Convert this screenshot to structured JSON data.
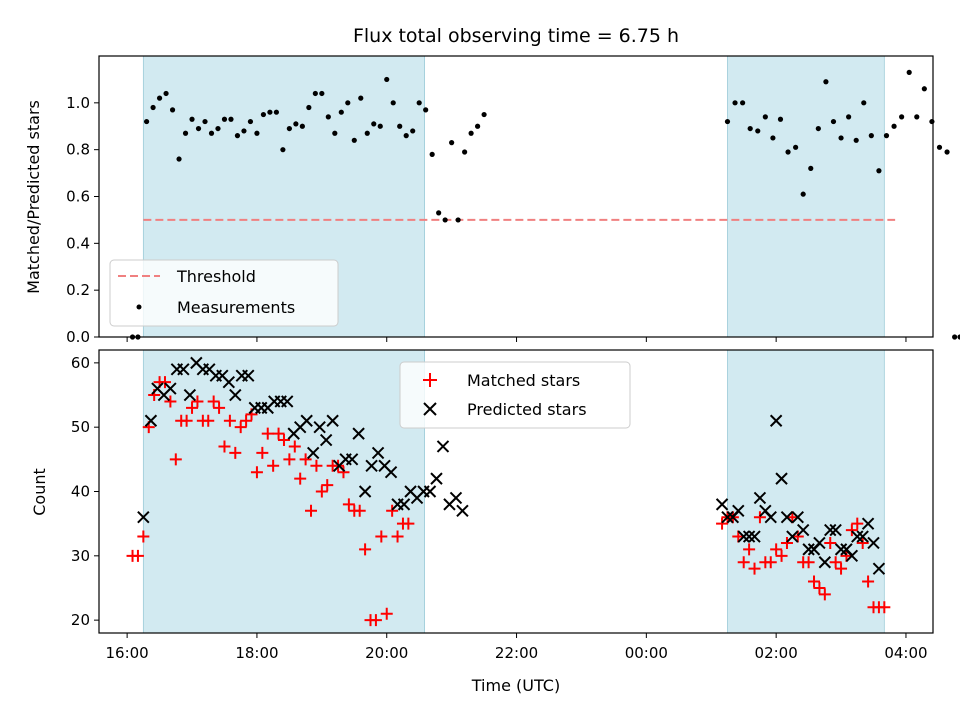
{
  "chart_data": [
    {
      "type": "scatter",
      "title": "Flux total observing time = 6.75 h",
      "xlabel": "",
      "ylabel": "Matched/Predicted stars",
      "xlim": [
        "15:34",
        "28:25"
      ],
      "ylim": [
        0,
        1.2
      ],
      "yticks": [
        "0.0",
        "0.2",
        "0.4",
        "0.6",
        "0.8",
        "1.0"
      ],
      "grid": false,
      "legend_position": "lower-left",
      "shaded_windows": [
        [
          "16:15",
          "20:35"
        ],
        [
          "25:15",
          "27:40"
        ]
      ],
      "threshold": {
        "label": "Threshold",
        "value": 0.5,
        "x_range": [
          "16:15",
          "27:50"
        ],
        "color": "#f08080"
      },
      "series": [
        {
          "name": "Measurements",
          "color": "#000000",
          "points": [
            [
              "16:05",
              0
            ],
            [
              "16:10",
              0
            ],
            [
              "16:18",
              0.92
            ],
            [
              "16:24",
              0.98
            ],
            [
              "16:30",
              1.02
            ],
            [
              "16:36",
              1.04
            ],
            [
              "16:42",
              0.97
            ],
            [
              "16:48",
              0.76
            ],
            [
              "16:54",
              0.87
            ],
            [
              "17:00",
              0.93
            ],
            [
              "17:06",
              0.89
            ],
            [
              "17:12",
              0.92
            ],
            [
              "17:18",
              0.87
            ],
            [
              "17:24",
              0.89
            ],
            [
              "17:30",
              0.93
            ],
            [
              "17:36",
              0.93
            ],
            [
              "17:42",
              0.86
            ],
            [
              "17:48",
              0.88
            ],
            [
              "17:54",
              0.92
            ],
            [
              "18:00",
              0.87
            ],
            [
              "18:06",
              0.95
            ],
            [
              "18:12",
              0.96
            ],
            [
              "18:18",
              0.96
            ],
            [
              "18:24",
              0.8
            ],
            [
              "18:30",
              0.89
            ],
            [
              "18:36",
              0.91
            ],
            [
              "18:42",
              0.9
            ],
            [
              "18:48",
              0.98
            ],
            [
              "18:54",
              1.04
            ],
            [
              "19:00",
              1.04
            ],
            [
              "19:06",
              0.94
            ],
            [
              "19:12",
              0.87
            ],
            [
              "19:18",
              0.96
            ],
            [
              "19:24",
              1.0
            ],
            [
              "19:30",
              0.84
            ],
            [
              "19:36",
              1.02
            ],
            [
              "19:42",
              0.87
            ],
            [
              "19:48",
              0.91
            ],
            [
              "19:54",
              0.9
            ],
            [
              "20:00",
              1.1
            ],
            [
              "20:06",
              1.0
            ],
            [
              "20:12",
              0.9
            ],
            [
              "20:18",
              0.86
            ],
            [
              "20:24",
              0.88
            ],
            [
              "20:30",
              1.0
            ],
            [
              "20:36",
              0.97
            ],
            [
              "20:42",
              0.78
            ],
            [
              "20:48",
              0.53
            ],
            [
              "20:54",
              0.5
            ],
            [
              "21:00",
              0.83
            ],
            [
              "21:06",
              0.5
            ],
            [
              "21:12",
              0.79
            ],
            [
              "21:18",
              0.87
            ],
            [
              "21:24",
              0.9
            ],
            [
              "21:30",
              0.95
            ],
            [
              "25:15",
              0.92
            ],
            [
              "25:22",
              1.0
            ],
            [
              "25:29",
              1.0
            ],
            [
              "25:36",
              0.89
            ],
            [
              "25:43",
              0.88
            ],
            [
              "25:50",
              0.94
            ],
            [
              "25:57",
              0.85
            ],
            [
              "26:04",
              0.93
            ],
            [
              "26:11",
              0.79
            ],
            [
              "26:18",
              0.81
            ],
            [
              "26:25",
              0.61
            ],
            [
              "26:32",
              0.72
            ],
            [
              "26:39",
              0.89
            ],
            [
              "26:46",
              1.09
            ],
            [
              "26:53",
              0.92
            ],
            [
              "27:00",
              0.85
            ],
            [
              "27:07",
              0.94
            ],
            [
              "27:14",
              0.84
            ],
            [
              "27:21",
              1.0
            ],
            [
              "27:28",
              0.86
            ],
            [
              "27:35",
              0.71
            ],
            [
              "27:42",
              0.86
            ],
            [
              "27:49",
              0.9
            ],
            [
              "27:56",
              0.94
            ],
            [
              "28:03",
              1.13
            ],
            [
              "28:10",
              0.94
            ],
            [
              "28:17",
              1.06
            ],
            [
              "28:24",
              0.92
            ],
            [
              "28:31",
              0.81
            ],
            [
              "28:38",
              0.79
            ],
            [
              "28:45",
              0
            ],
            [
              "28:50",
              0
            ]
          ]
        }
      ]
    },
    {
      "type": "scatter",
      "title": "",
      "xlabel": "Time (UTC)",
      "ylabel": "Count",
      "xlim": [
        "15:34",
        "28:25"
      ],
      "ylim": [
        18,
        62
      ],
      "yticks": [
        "20",
        "30",
        "40",
        "50",
        "60"
      ],
      "xticks": [
        "16:00",
        "18:00",
        "20:00",
        "22:00",
        "00:00",
        "02:00",
        "04:00"
      ],
      "grid": false,
      "legend_position": "top-center",
      "shaded_windows": [
        [
          "16:15",
          "20:35"
        ],
        [
          "25:15",
          "27:40"
        ]
      ],
      "series": [
        {
          "name": "Matched stars",
          "color": "#ff0000",
          "marker": "plus",
          "points": [
            [
              "16:05",
              30
            ],
            [
              "16:10",
              30
            ],
            [
              "16:15",
              33
            ],
            [
              "16:20",
              50
            ],
            [
              "16:25",
              55
            ],
            [
              "16:30",
              57
            ],
            [
              "16:35",
              57
            ],
            [
              "16:40",
              54
            ],
            [
              "16:45",
              45
            ],
            [
              "16:50",
              51
            ],
            [
              "16:55",
              51
            ],
            [
              "17:00",
              53
            ],
            [
              "17:05",
              54
            ],
            [
              "17:10",
              51
            ],
            [
              "17:15",
              51
            ],
            [
              "17:20",
              54
            ],
            [
              "17:25",
              53
            ],
            [
              "17:30",
              47
            ],
            [
              "17:35",
              51
            ],
            [
              "17:40",
              46
            ],
            [
              "17:45",
              50
            ],
            [
              "17:50",
              51
            ],
            [
              "17:55",
              52
            ],
            [
              "18:00",
              43
            ],
            [
              "18:05",
              46
            ],
            [
              "18:10",
              49
            ],
            [
              "18:15",
              44
            ],
            [
              "18:20",
              49
            ],
            [
              "18:25",
              48
            ],
            [
              "18:30",
              45
            ],
            [
              "18:35",
              47
            ],
            [
              "18:40",
              42
            ],
            [
              "18:45",
              45
            ],
            [
              "18:50",
              37
            ],
            [
              "18:55",
              44
            ],
            [
              "19:00",
              40
            ],
            [
              "19:05",
              41
            ],
            [
              "19:10",
              44
            ],
            [
              "19:15",
              44
            ],
            [
              "19:20",
              43
            ],
            [
              "19:25",
              38
            ],
            [
              "19:30",
              37
            ],
            [
              "19:35",
              37
            ],
            [
              "19:40",
              31
            ],
            [
              "19:45",
              20
            ],
            [
              "19:50",
              20
            ],
            [
              "19:55",
              33
            ],
            [
              "20:00",
              21
            ],
            [
              "20:05",
              37
            ],
            [
              "20:10",
              33
            ],
            [
              "20:15",
              35
            ],
            [
              "20:20",
              35
            ],
            [
              "01:10",
              35
            ],
            [
              "01:15",
              36
            ],
            [
              "01:20",
              36
            ],
            [
              "01:25",
              33
            ],
            [
              "01:30",
              29
            ],
            [
              "01:35",
              31
            ],
            [
              "01:40",
              28
            ],
            [
              "01:45",
              36
            ],
            [
              "01:50",
              29
            ],
            [
              "01:55",
              29
            ],
            [
              "02:00",
              31
            ],
            [
              "02:05",
              30
            ],
            [
              "02:10",
              32
            ],
            [
              "02:15",
              36
            ],
            [
              "02:20",
              33
            ],
            [
              "02:25",
              29
            ],
            [
              "02:30",
              29
            ],
            [
              "02:35",
              26
            ],
            [
              "02:40",
              25
            ],
            [
              "02:45",
              24
            ],
            [
              "02:50",
              32
            ],
            [
              "02:55",
              29
            ],
            [
              "03:00",
              28
            ],
            [
              "03:05",
              30
            ],
            [
              "03:10",
              34
            ],
            [
              "03:15",
              35
            ],
            [
              "03:20",
              32
            ],
            [
              "03:25",
              26
            ],
            [
              "03:30",
              22
            ],
            [
              "03:35",
              22
            ],
            [
              "03:40",
              22
            ]
          ]
        },
        {
          "name": "Predicted stars",
          "color": "#000000",
          "marker": "x",
          "points": [
            [
              "16:15",
              36
            ],
            [
              "16:22",
              51
            ],
            [
              "16:28",
              56
            ],
            [
              "16:34",
              55
            ],
            [
              "16:40",
              56
            ],
            [
              "16:46",
              59
            ],
            [
              "16:52",
              59
            ],
            [
              "16:58",
              55
            ],
            [
              "17:04",
              60
            ],
            [
              "17:10",
              59
            ],
            [
              "17:16",
              59
            ],
            [
              "17:22",
              58
            ],
            [
              "17:28",
              58
            ],
            [
              "17:34",
              57
            ],
            [
              "17:40",
              55
            ],
            [
              "17:46",
              58
            ],
            [
              "17:52",
              58
            ],
            [
              "17:58",
              53
            ],
            [
              "18:04",
              53
            ],
            [
              "18:10",
              53
            ],
            [
              "18:16",
              54
            ],
            [
              "18:22",
              54
            ],
            [
              "18:28",
              54
            ],
            [
              "18:34",
              49
            ],
            [
              "18:40",
              50
            ],
            [
              "18:46",
              51
            ],
            [
              "18:52",
              46
            ],
            [
              "18:58",
              50
            ],
            [
              "19:04",
              48
            ],
            [
              "19:10",
              51
            ],
            [
              "19:16",
              44
            ],
            [
              "19:22",
              45
            ],
            [
              "19:28",
              45
            ],
            [
              "19:34",
              49
            ],
            [
              "19:40",
              40
            ],
            [
              "19:46",
              44
            ],
            [
              "19:52",
              46
            ],
            [
              "19:58",
              44
            ],
            [
              "20:04",
              43
            ],
            [
              "20:10",
              38
            ],
            [
              "20:16",
              38
            ],
            [
              "20:22",
              40
            ],
            [
              "20:28",
              39
            ],
            [
              "20:34",
              40
            ],
            [
              "20:40",
              40
            ],
            [
              "20:46",
              42
            ],
            [
              "20:52",
              47
            ],
            [
              "20:58",
              38
            ],
            [
              "21:04",
              39
            ],
            [
              "21:10",
              37
            ],
            [
              "01:10",
              38
            ],
            [
              "01:15",
              36
            ],
            [
              "01:20",
              36
            ],
            [
              "01:25",
              37
            ],
            [
              "01:30",
              33
            ],
            [
              "01:35",
              33
            ],
            [
              "01:40",
              33
            ],
            [
              "01:45",
              39
            ],
            [
              "01:50",
              37
            ],
            [
              "01:55",
              36
            ],
            [
              "02:00",
              51
            ],
            [
              "02:05",
              42
            ],
            [
              "02:10",
              36
            ],
            [
              "02:15",
              33
            ],
            [
              "02:20",
              36
            ],
            [
              "02:25",
              34
            ],
            [
              "02:30",
              31
            ],
            [
              "02:35",
              31
            ],
            [
              "02:40",
              32
            ],
            [
              "02:45",
              29
            ],
            [
              "02:50",
              34
            ],
            [
              "02:55",
              34
            ],
            [
              "03:00",
              31
            ],
            [
              "03:05",
              31
            ],
            [
              "03:10",
              30
            ],
            [
              "03:15",
              33
            ],
            [
              "03:20",
              33
            ],
            [
              "03:25",
              35
            ],
            [
              "03:30",
              32
            ],
            [
              "03:35",
              28
            ]
          ]
        }
      ]
    }
  ]
}
